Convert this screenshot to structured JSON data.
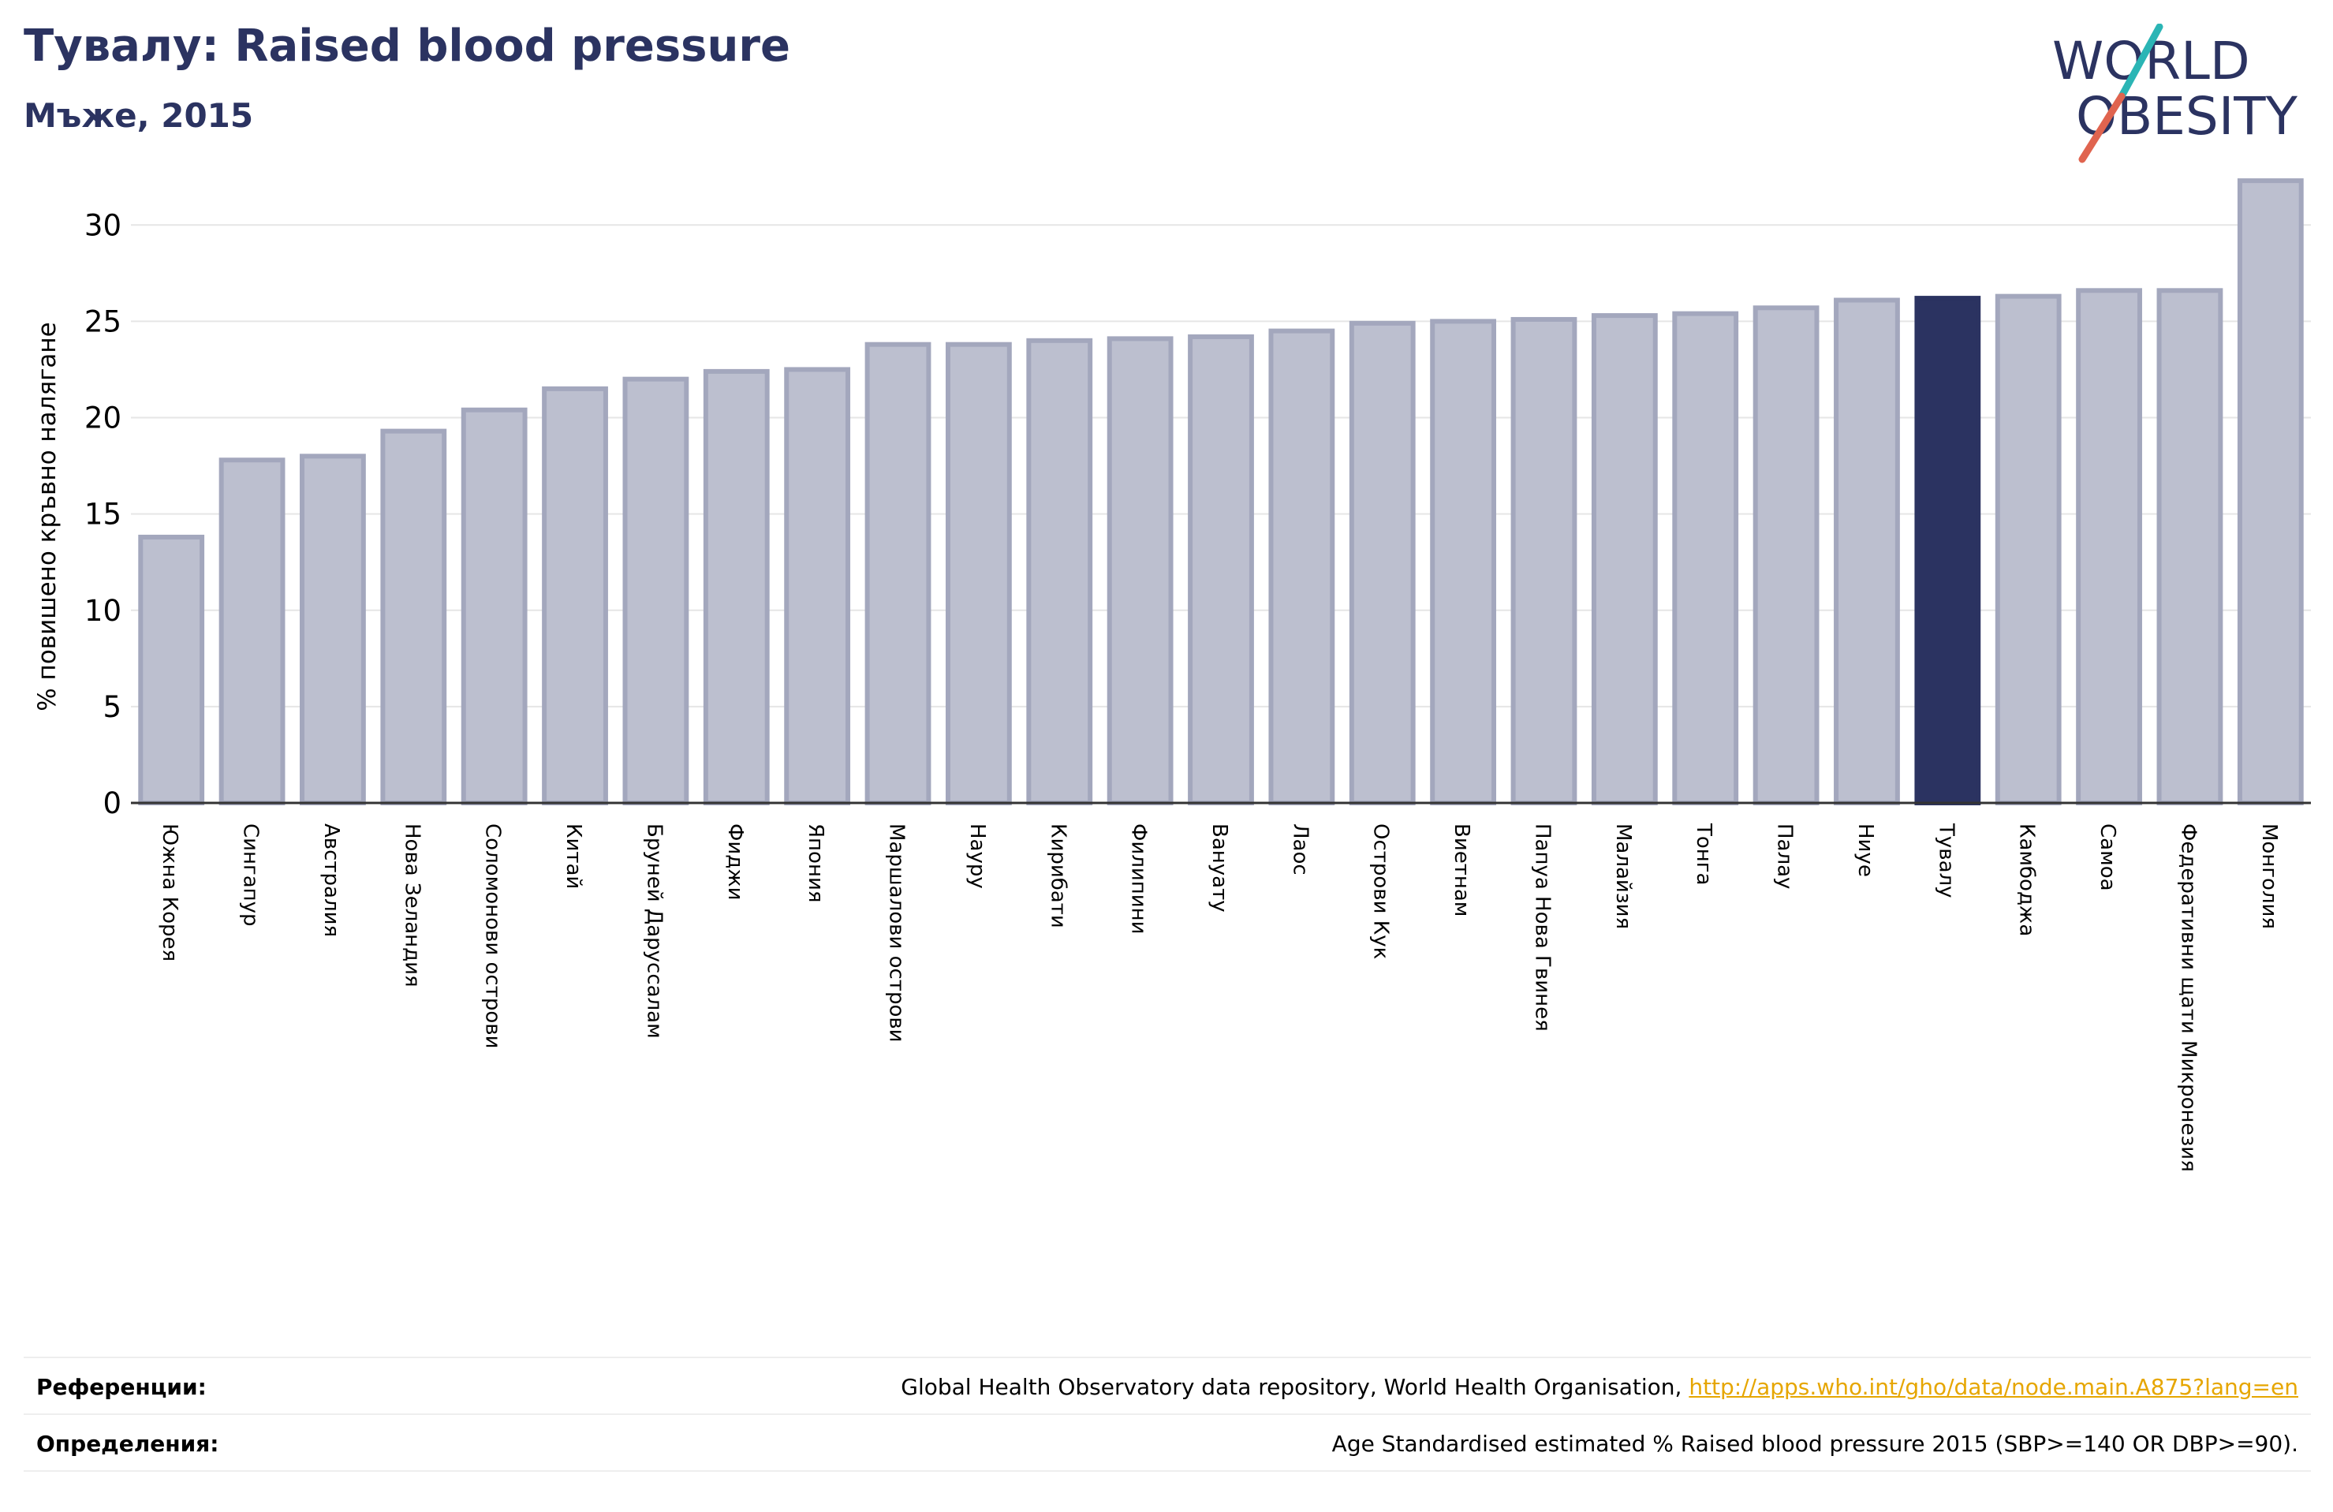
{
  "header": {
    "title": "Тувалу: Raised blood pressure",
    "subtitle": "Мъже, 2015"
  },
  "logo": {
    "line1": "WORLD",
    "line2": "OBESITY",
    "text_color": "#2b3361",
    "slash_colors": [
      "#2bb5b5",
      "#e0644f"
    ]
  },
  "colors": {
    "bar_default": "#bcbfcf",
    "bar_default_edge": "#a3a7bd",
    "bar_highlight": "#2b3361",
    "grid": "#e6e6e6",
    "axis": "#333333"
  },
  "chart_data": {
    "type": "bar",
    "ylabel": "% повишено кръвно налягане",
    "ylim": [
      0,
      33
    ],
    "yticks": [
      0,
      5,
      10,
      15,
      20,
      25,
      30
    ],
    "grid": true,
    "highlight": "Тувалу",
    "categories": [
      "Южна Корея",
      "Сингапур",
      "Австралия",
      "Нова Зеландия",
      "Соломонови острови",
      "Китай",
      "Бруней Даруссалам",
      "Фиджи",
      "Япония",
      "Маршалови острови",
      "Науру",
      "Кирибати",
      "Филипини",
      "Вануату",
      "Лаос",
      "Острови Кук",
      "Виетнам",
      "Папуа Нова Гвинея",
      "Малайзия",
      "Тонга",
      "Палау",
      "Ниуе",
      "Тувалу",
      "Камбоджа",
      "Самоа",
      "Федеративни щати Микронезия",
      "Монголия"
    ],
    "values": [
      13.8,
      17.8,
      18.0,
      19.3,
      20.4,
      21.5,
      22.0,
      22.4,
      22.5,
      23.8,
      23.8,
      24.0,
      24.1,
      24.2,
      24.5,
      24.9,
      25.0,
      25.1,
      25.3,
      25.4,
      25.7,
      26.1,
      26.2,
      26.3,
      26.6,
      26.6,
      32.3
    ]
  },
  "references": {
    "sources_label": "Референции:",
    "sources_text": "Global Health Observatory data repository, World Health Organisation, ",
    "sources_link": "http://apps.who.int/gho/data/node.main.A875?lang=en",
    "definitions_label": "Определения:",
    "definitions_text": "Age Standardised estimated % Raised blood pressure 2015 (SBP>=140 OR DBP>=90)."
  }
}
